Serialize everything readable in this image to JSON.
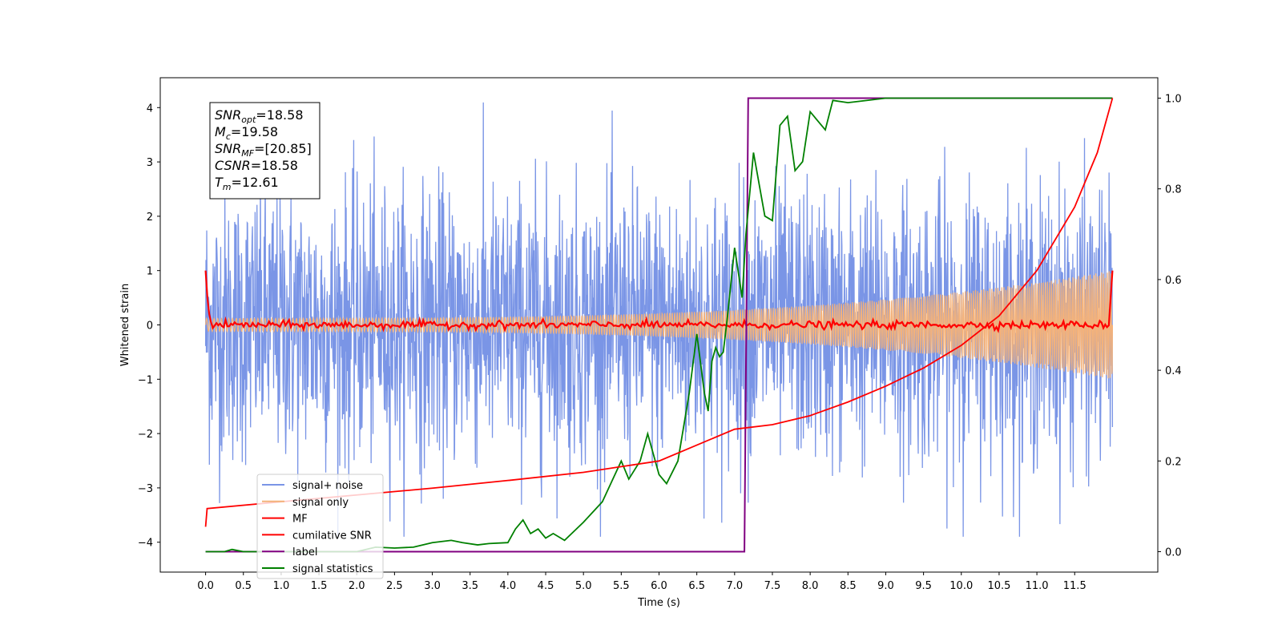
{
  "chart_data": {
    "type": "line",
    "xlabel": "Time (s)",
    "ylabel": "Whitened strain",
    "xlim": [
      -0.6,
      12.6
    ],
    "ylim": [
      -4.55,
      4.55
    ],
    "y2lim": [
      -0.045,
      1.045
    ],
    "xticks": [
      "0.0",
      "0.5",
      "1.0",
      "1.5",
      "2.0",
      "2.5",
      "3.0",
      "3.5",
      "4.0",
      "4.5",
      "5.0",
      "5.5",
      "6.0",
      "6.5",
      "7.0",
      "7.5",
      "8.0",
      "8.5",
      "9.0",
      "9.5",
      "10.0",
      "10.5",
      "11.0",
      "11.5"
    ],
    "yticks": [
      "−4",
      "−3",
      "−2",
      "−1",
      "0",
      "1",
      "2",
      "3",
      "4"
    ],
    "y2ticks": [
      "0.0",
      "0.2",
      "0.4",
      "0.6",
      "0.8",
      "1.0"
    ],
    "grid": false,
    "legend_position": "lower-left",
    "annotation": {
      "lines": [
        {
          "main": "SNR",
          "sub": "opt",
          "rest": "=18.58"
        },
        {
          "main": "M",
          "sub": "c",
          "rest": "=19.58"
        },
        {
          "main": "SNR",
          "sub": "MF",
          "rest": "=[20.85]"
        },
        {
          "main": "CSNR",
          "sub": "",
          "rest": "=18.58"
        },
        {
          "main": "T",
          "sub": "m",
          "rest": "=12.61"
        }
      ]
    },
    "series": [
      {
        "name": "signal+ noise",
        "color": "#7a95e6",
        "axis": "left",
        "kind": "noise",
        "amplitude_range": [
          -3.9,
          4.2
        ],
        "x_range": [
          0.0,
          12.0
        ]
      },
      {
        "name": "signal only",
        "color": "#f4b27a",
        "axis": "left",
        "kind": "chirp",
        "envelope_start": 0.12,
        "envelope_end": 1.0,
        "x_range": [
          0.0,
          12.0
        ]
      },
      {
        "name": "MF",
        "color": "#ff0000",
        "axis": "left",
        "kind": "flat",
        "start_value": 1.0,
        "end_value": 1.0,
        "base": 0.0,
        "x_range": [
          0.0,
          12.0
        ]
      },
      {
        "name": "cumilative SNR",
        "color": "#ff0000",
        "axis": "right",
        "x": [
          0.0,
          0.02,
          1.0,
          2.0,
          3.0,
          4.0,
          5.0,
          6.0,
          7.0,
          7.5,
          8.0,
          8.5,
          9.0,
          9.5,
          10.0,
          10.5,
          11.0,
          11.5,
          11.8,
          12.0
        ],
        "y": [
          0.055,
          0.095,
          0.11,
          0.125,
          0.14,
          0.157,
          0.175,
          0.2,
          0.27,
          0.28,
          0.3,
          0.33,
          0.365,
          0.405,
          0.455,
          0.52,
          0.62,
          0.76,
          0.88,
          1.0
        ]
      },
      {
        "name": "label",
        "color": "#800080",
        "axis": "right",
        "x": [
          0.0,
          7.13,
          7.18,
          12.0
        ],
        "y": [
          0.0,
          0.0,
          1.0,
          1.0
        ]
      },
      {
        "name": "signal statistics",
        "color": "#008000",
        "axis": "right",
        "x": [
          0.0,
          0.25,
          0.35,
          0.5,
          0.75,
          1.0,
          1.5,
          2.0,
          2.25,
          2.5,
          2.75,
          3.0,
          3.25,
          3.4,
          3.6,
          3.75,
          4.0,
          4.1,
          4.2,
          4.3,
          4.4,
          4.5,
          4.6,
          4.75,
          5.0,
          5.25,
          5.5,
          5.6,
          5.75,
          5.85,
          5.95,
          6.0,
          6.1,
          6.25,
          6.4,
          6.5,
          6.6,
          6.65,
          6.7,
          6.75,
          6.8,
          6.85,
          6.9,
          7.0,
          7.1,
          7.15,
          7.25,
          7.4,
          7.5,
          7.6,
          7.7,
          7.8,
          7.9,
          8.0,
          8.1,
          8.2,
          8.3,
          8.5,
          9.0,
          9.5,
          10.0,
          10.5,
          11.0,
          11.5,
          12.0
        ],
        "y": [
          0.0,
          0.0,
          0.005,
          0.0,
          0.0,
          0.0,
          0.0,
          0.0,
          0.01,
          0.008,
          0.01,
          0.02,
          0.025,
          0.02,
          0.015,
          0.018,
          0.02,
          0.05,
          0.07,
          0.04,
          0.05,
          0.03,
          0.04,
          0.025,
          0.065,
          0.11,
          0.2,
          0.16,
          0.2,
          0.26,
          0.2,
          0.17,
          0.15,
          0.2,
          0.35,
          0.48,
          0.35,
          0.31,
          0.42,
          0.45,
          0.43,
          0.44,
          0.51,
          0.67,
          0.56,
          0.7,
          0.88,
          0.74,
          0.73,
          0.94,
          0.96,
          0.84,
          0.86,
          0.97,
          0.95,
          0.93,
          0.995,
          0.99,
          1.0,
          1.0,
          1.0,
          1.0,
          1.0,
          1.0,
          1.0
        ]
      }
    ]
  }
}
